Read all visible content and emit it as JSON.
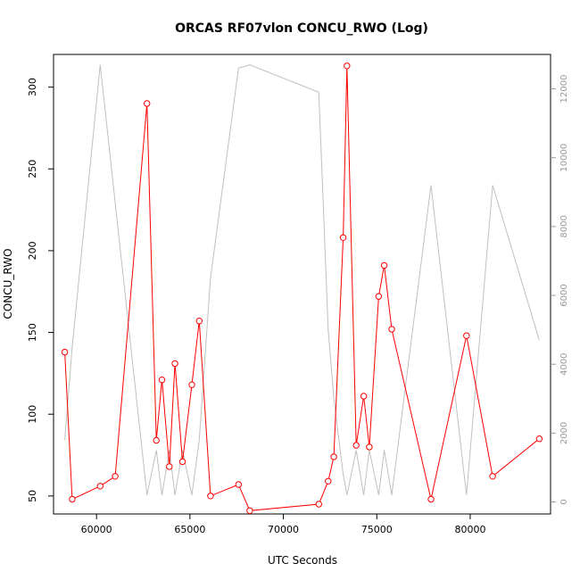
{
  "chart_data": {
    "type": "line",
    "title": "ORCAS RF07vlon CONCU_RWO (Log)",
    "xlabel": "UTC Seconds",
    "ylabel": "CONCU_RWO",
    "xlim": [
      57700,
      84300
    ],
    "ylim": [
      39,
      320
    ],
    "y2lim": [
      -350,
      13000
    ],
    "x_ticks": [
      60000,
      65000,
      70000,
      75000,
      80000
    ],
    "x_tick_labels": [
      "60000",
      "65000",
      "70000",
      "75000",
      "80000"
    ],
    "y_ticks": [
      50,
      100,
      150,
      200,
      250,
      300
    ],
    "y_tick_labels": [
      "50",
      "100",
      "150",
      "200",
      "250",
      "300"
    ],
    "y2_ticks": [
      0,
      2000,
      4000,
      6000,
      8000,
      10000,
      12000
    ],
    "y2_tick_labels": [
      "0",
      "2000",
      "4000",
      "6000",
      "8000",
      "10000",
      "12000"
    ],
    "grid": false,
    "colors": {
      "primary": "#ff0000",
      "secondary": "#c0c0c0"
    },
    "series": [
      {
        "axis": "left",
        "color": "#ff0000",
        "markers": "open-circle",
        "x": [
          58300,
          58700,
          60200,
          61000,
          62700,
          63200,
          63500,
          63900,
          64200,
          64600,
          65100,
          65500,
          66100,
          67600,
          68200,
          71900,
          72400,
          72700,
          73200,
          73400,
          73900,
          74300,
          74600,
          75100,
          75400,
          75800,
          77900,
          79800,
          81200,
          83700
        ],
        "y": [
          138,
          48,
          56,
          62,
          290,
          84,
          121,
          68,
          131,
          71,
          118,
          157,
          50,
          57,
          41,
          45,
          59,
          74,
          208,
          313,
          81,
          111,
          80,
          172,
          191,
          152,
          48,
          148,
          62,
          85
        ]
      },
      {
        "axis": "right",
        "color": "#c0c0c0",
        "markers": "none",
        "x": [
          58300,
          58700,
          60200,
          62700,
          63200,
          63500,
          63900,
          64200,
          64600,
          65100,
          65500,
          66100,
          67600,
          68200,
          71900,
          72400,
          72700,
          73200,
          73400,
          73900,
          74300,
          74600,
          75100,
          75400,
          75800,
          77900,
          79800,
          81200,
          83700
        ],
        "y": [
          1800,
          4500,
          12700,
          200,
          1500,
          200,
          1500,
          200,
          1500,
          200,
          1800,
          6500,
          12600,
          12700,
          11900,
          5000,
          3000,
          800,
          200,
          1500,
          200,
          1500,
          200,
          1500,
          200,
          9200,
          200,
          9200,
          4700
        ]
      }
    ]
  }
}
